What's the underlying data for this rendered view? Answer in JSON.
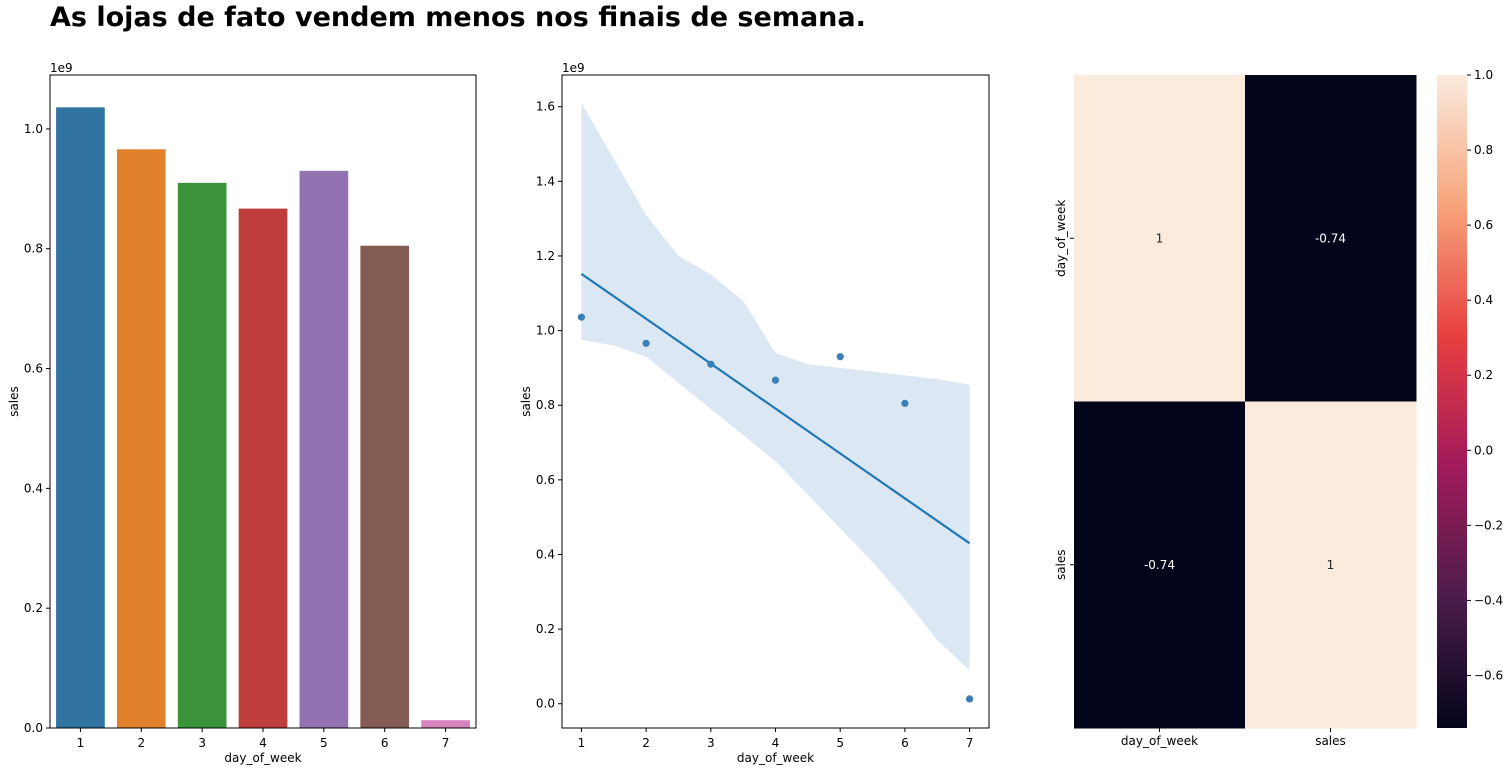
{
  "title": "As lojas de fato vendem menos nos finais de semana.",
  "chart_data": [
    {
      "type": "bar",
      "xlabel": "day_of_week",
      "ylabel": "sales",
      "offset_label": "1e9",
      "categories": [
        "1",
        "2",
        "3",
        "4",
        "5",
        "6",
        "7"
      ],
      "values": [
        1.036,
        0.966,
        0.91,
        0.867,
        0.93,
        0.805,
        0.013
      ],
      "colors": [
        "#3274a1",
        "#e1812c",
        "#3a923a",
        "#c03d3e",
        "#9372b2",
        "#845b53",
        "#d684bd"
      ],
      "ylim": [
        0,
        1.09
      ],
      "yticks": [
        "0.0",
        "0.2",
        "0.4",
        "0.6",
        "0.8",
        "1.0"
      ]
    },
    {
      "type": "scatter",
      "xlabel": "day_of_week",
      "ylabel": "sales",
      "offset_label": "1e9",
      "x": [
        1,
        2,
        3,
        4,
        5,
        6,
        7
      ],
      "y": [
        1.036,
        0.966,
        0.91,
        0.867,
        0.93,
        0.805,
        0.013
      ],
      "regression_line": {
        "x": [
          1,
          7
        ],
        "y": [
          1.152,
          0.43
        ]
      },
      "confidence_band": {
        "x": [
          1,
          1.5,
          2,
          2.5,
          3,
          3.5,
          4,
          4.5,
          5,
          5.5,
          6,
          6.5,
          7
        ],
        "upper": [
          1.61,
          1.46,
          1.31,
          1.2,
          1.15,
          1.08,
          0.94,
          0.91,
          0.9,
          0.89,
          0.88,
          0.87,
          0.855
        ],
        "lower": [
          0.975,
          0.96,
          0.93,
          0.86,
          0.79,
          0.72,
          0.65,
          0.56,
          0.47,
          0.38,
          0.28,
          0.17,
          0.09
        ]
      },
      "point_color": "#3a7fb8",
      "line_color": "#1f77b4",
      "band_color": "#c8dcee",
      "xlim": [
        0.7,
        7.3
      ],
      "ylim": [
        -0.065,
        1.685
      ],
      "xticks": [
        "1",
        "2",
        "3",
        "4",
        "5",
        "6",
        "7"
      ],
      "yticks": [
        "0.0",
        "0.2",
        "0.4",
        "0.6",
        "0.8",
        "1.0",
        "1.2",
        "1.4",
        "1.6"
      ]
    },
    {
      "type": "heatmap",
      "rows": [
        "day_of_week",
        "sales"
      ],
      "columns": [
        "day_of_week",
        "sales"
      ],
      "values": [
        [
          1,
          -0.74
        ],
        [
          -0.74,
          1
        ]
      ],
      "labels": [
        [
          "1",
          "-0.74"
        ],
        [
          "-0.74",
          "1"
        ]
      ],
      "vmin": -0.74,
      "vmax": 1.0,
      "colorbar_ticks": [
        "1.0",
        "0.8",
        "0.6",
        "0.4",
        "0.2",
        "0.0",
        "−0.2",
        "−0.4",
        "−0.6"
      ]
    }
  ]
}
